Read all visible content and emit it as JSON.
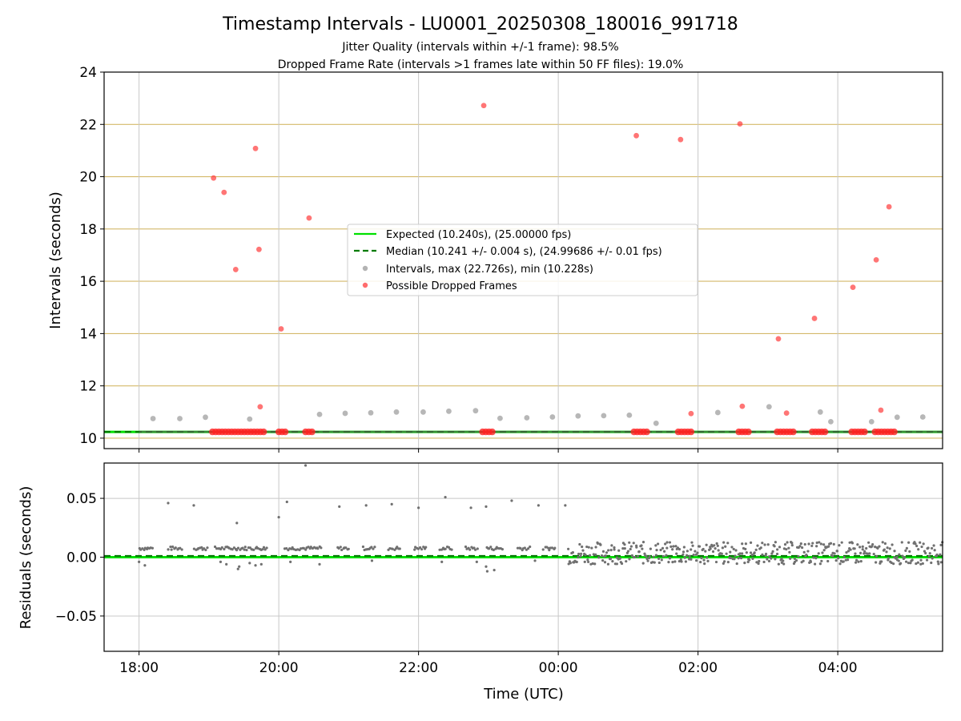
{
  "figure": {
    "title": "Timestamp Intervals - LU0001_20250308_180016_991718",
    "subtitle_1": "Jitter Quality (intervals within +/-1 frame): 98.5%",
    "subtitle_2": "Dropped Frame Rate (intervals >1 frames late within 50 FF files): 19.0%",
    "xlabel": "Time (UTC)"
  },
  "chart_data": [
    {
      "type": "scatter",
      "panel": "top",
      "ylabel": "Intervals (seconds)",
      "x_axis": {
        "type": "time",
        "range": [
          "2025-03-08T17:30",
          "2025-03-09T05:30"
        ],
        "ticks": [
          "18:00",
          "20:00",
          "22:00",
          "00:00",
          "02:00",
          "04:00"
        ]
      },
      "ylim": [
        9.6,
        24
      ],
      "yticks": [
        10,
        12,
        14,
        16,
        18,
        20,
        22,
        24
      ],
      "grid": {
        "vertical": true,
        "horizontal_color": "#d4b96a"
      },
      "legend": {
        "placement": "center",
        "entries": [
          "Expected (10.240s), (25.00000 fps)",
          "Median (10.241 +/- 0.004 s), (24.99686 +/- 0.01 fps)",
          "Intervals, max (22.726s), min (10.228s)",
          "Possible Dropped Frames"
        ]
      },
      "reference_lines": [
        {
          "name": "expected",
          "y": 10.24,
          "color": "#00e000",
          "style": "solid"
        },
        {
          "name": "median",
          "y": 10.241,
          "color": "#007a00",
          "style": "dashed"
        }
      ],
      "series": [
        {
          "role": "intervals",
          "color": "#999999",
          "points": [
            [
              "2025-03-08T18:12",
              10.75
            ],
            [
              "2025-03-08T18:35",
              10.75
            ],
            [
              "2025-03-08T18:57",
              10.8
            ],
            [
              "2025-03-08T19:35",
              10.73
            ],
            [
              "2025-03-08T20:35",
              10.91
            ],
            [
              "2025-03-08T20:57",
              10.95
            ],
            [
              "2025-03-08T21:19",
              10.97
            ],
            [
              "2025-03-08T21:41",
              11.0
            ],
            [
              "2025-03-08T22:04",
              11.0
            ],
            [
              "2025-03-08T22:26",
              11.03
            ],
            [
              "2025-03-08T22:49",
              11.05
            ],
            [
              "2025-03-08T23:10",
              10.76
            ],
            [
              "2025-03-08T23:33",
              10.78
            ],
            [
              "2025-03-08T23:55",
              10.81
            ],
            [
              "2025-03-09T00:17",
              10.85
            ],
            [
              "2025-03-09T00:39",
              10.86
            ],
            [
              "2025-03-09T01:01",
              10.88
            ],
            [
              "2025-03-09T01:24",
              10.57
            ],
            [
              "2025-03-09T02:17",
              10.98
            ],
            [
              "2025-03-09T03:01",
              11.2
            ],
            [
              "2025-03-09T03:45",
              11.0
            ],
            [
              "2025-03-09T04:29",
              10.63
            ],
            [
              "2025-03-09T04:51",
              10.8
            ],
            [
              "2025-03-09T05:13",
              10.81
            ],
            [
              "2025-03-09T03:54",
              10.63
            ]
          ]
        },
        {
          "role": "dropped",
          "color": "#ff3b3b",
          "points": [
            [
              "2025-03-08T19:04",
              19.95
            ],
            [
              "2025-03-08T19:13",
              19.4
            ],
            [
              "2025-03-08T19:23",
              16.45
            ],
            [
              "2025-03-08T19:40",
              21.08
            ],
            [
              "2025-03-08T19:43",
              17.22
            ],
            [
              "2025-03-08T19:44",
              11.2
            ],
            [
              "2025-03-08T20:02",
              14.18
            ],
            [
              "2025-03-08T20:26",
              18.42
            ],
            [
              "2025-03-08T22:56",
              22.72
            ],
            [
              "2025-03-09T01:07",
              21.57
            ],
            [
              "2025-03-09T01:45",
              21.42
            ],
            [
              "2025-03-09T01:54",
              10.94
            ],
            [
              "2025-03-09T02:36",
              22.02
            ],
            [
              "2025-03-09T02:38",
              11.22
            ],
            [
              "2025-03-09T03:09",
              13.8
            ],
            [
              "2025-03-09T03:16",
              10.96
            ],
            [
              "2025-03-09T03:40",
              14.58
            ],
            [
              "2025-03-09T04:13",
              15.77
            ],
            [
              "2025-03-09T04:33",
              16.82
            ],
            [
              "2025-03-09T04:37",
              11.07
            ],
            [
              "2025-03-09T04:44",
              18.85
            ]
          ]
        }
      ]
    },
    {
      "type": "scatter",
      "panel": "bottom",
      "ylabel": "Residuals (seconds)",
      "x_axis": {
        "type": "time",
        "range": [
          "2025-03-08T17:30",
          "2025-03-09T05:30"
        ],
        "ticks": [
          "18:00",
          "20:00",
          "22:00",
          "00:00",
          "02:00",
          "04:00"
        ]
      },
      "ylim": [
        -0.08,
        0.08
      ],
      "yticks": [
        0.05,
        0.0,
        -0.05
      ],
      "ytick_labels": [
        "0.05",
        "0.00",
        "−0.05"
      ],
      "grid": true,
      "reference_lines": [
        {
          "name": "expected",
          "y": 0.0,
          "color": "#00e000",
          "style": "solid"
        },
        {
          "name": "median",
          "y": 0.001,
          "color": "#007a00",
          "style": "dashed"
        }
      ],
      "series": [
        {
          "role": "residuals",
          "color": "#707070",
          "clusters": [
            [
              "2025-03-08T18:00",
              "2025-03-08T18:12",
              0.006,
              0.009
            ],
            [
              "2025-03-08T18:25",
              "2025-03-08T18:37",
              0.006,
              0.009
            ],
            [
              "2025-03-08T18:47",
              "2025-03-08T18:59",
              0.006,
              0.009
            ],
            [
              "2025-03-08T19:05",
              "2025-03-08T19:50",
              0.006,
              0.009
            ],
            [
              "2025-03-08T20:05",
              "2025-03-08T20:37",
              0.006,
              0.009
            ],
            [
              "2025-03-08T20:50",
              "2025-03-08T21:00",
              0.006,
              0.009
            ],
            [
              "2025-03-08T21:12",
              "2025-03-08T21:22",
              0.006,
              0.009
            ],
            [
              "2025-03-08T21:34",
              "2025-03-08T21:44",
              0.006,
              0.009
            ],
            [
              "2025-03-08T21:56",
              "2025-03-08T22:06",
              0.006,
              0.009
            ],
            [
              "2025-03-08T22:18",
              "2025-03-08T22:28",
              0.006,
              0.009
            ],
            [
              "2025-03-08T22:40",
              "2025-03-08T22:50",
              0.006,
              0.009
            ],
            [
              "2025-03-08T22:58",
              "2025-03-08T23:12",
              0.006,
              0.009
            ],
            [
              "2025-03-08T23:25",
              "2025-03-08T23:35",
              0.006,
              0.009
            ],
            [
              "2025-03-08T23:47",
              "2025-03-08T23:57",
              0.006,
              0.009
            ],
            [
              "2025-03-09T00:08",
              "2025-03-09T05:30",
              -0.006,
              0.013
            ]
          ],
          "outliers": [
            [
              "2025-03-08T18:25",
              0.046
            ],
            [
              "2025-03-08T18:47",
              0.044
            ],
            [
              "2025-03-08T19:24",
              0.029
            ],
            [
              "2025-03-08T20:00",
              0.034
            ],
            [
              "2025-03-08T20:07",
              0.047
            ],
            [
              "2025-03-08T20:23",
              0.078
            ],
            [
              "2025-03-08T20:52",
              0.043
            ],
            [
              "2025-03-08T21:15",
              0.044
            ],
            [
              "2025-03-08T21:37",
              0.045
            ],
            [
              "2025-03-08T22:00",
              0.042
            ],
            [
              "2025-03-08T22:23",
              0.051
            ],
            [
              "2025-03-08T22:45",
              0.042
            ],
            [
              "2025-03-08T22:58",
              0.043
            ],
            [
              "2025-03-08T23:20",
              0.048
            ],
            [
              "2025-03-08T23:43",
              0.044
            ],
            [
              "2025-03-09T00:06",
              0.044
            ],
            [
              "2025-03-08T18:00",
              -0.004
            ],
            [
              "2025-03-08T18:05",
              -0.007
            ],
            [
              "2025-03-08T19:10",
              -0.004
            ],
            [
              "2025-03-08T19:15",
              -0.006
            ],
            [
              "2025-03-08T19:25",
              -0.01
            ],
            [
              "2025-03-08T19:26",
              -0.008
            ],
            [
              "2025-03-08T19:35",
              -0.005
            ],
            [
              "2025-03-08T19:40",
              -0.007
            ],
            [
              "2025-03-08T19:45",
              -0.006
            ],
            [
              "2025-03-08T20:10",
              -0.004
            ],
            [
              "2025-03-08T20:35",
              -0.006
            ],
            [
              "2025-03-08T21:20",
              -0.003
            ],
            [
              "2025-03-08T22:20",
              -0.004
            ],
            [
              "2025-03-08T22:50",
              -0.004
            ],
            [
              "2025-03-08T22:58",
              -0.008
            ],
            [
              "2025-03-08T22:59",
              -0.012
            ],
            [
              "2025-03-08T23:05",
              -0.011
            ],
            [
              "2025-03-08T23:40",
              -0.003
            ]
          ]
        }
      ]
    }
  ]
}
